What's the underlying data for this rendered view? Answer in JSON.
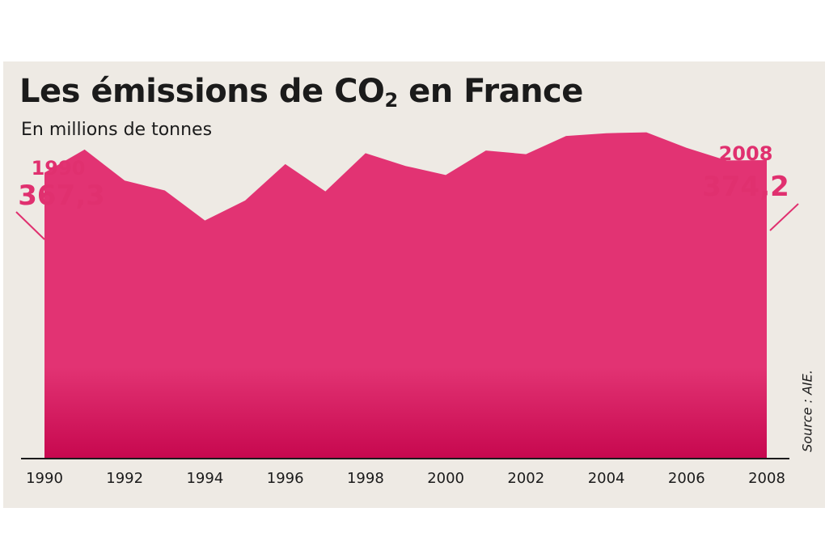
{
  "title_main": "Les émissions de CO",
  "title_sub": "2",
  "title_end": " en France",
  "subtitle": "En millions de tonnes",
  "source": "Source : AIE.",
  "colors": {
    "area_top": "#e23373",
    "area_bottom": "#c7084f",
    "accent": "#e0306f",
    "text": "#1b1b1b",
    "panel": "#eeeae4"
  },
  "callouts": [
    {
      "year": "1990",
      "value": "367,3"
    },
    {
      "year": "2008",
      "value": "374,2"
    }
  ],
  "chart_data": {
    "type": "area",
    "x": [
      1990,
      1991,
      1992,
      1993,
      1994,
      1995,
      1996,
      1997,
      1998,
      1999,
      2000,
      2001,
      2002,
      2003,
      2004,
      2005,
      2006,
      2007,
      2008
    ],
    "values": [
      367.3,
      380.0,
      363.0,
      357.5,
      341.0,
      352.0,
      372.0,
      357.0,
      378.0,
      371.0,
      366.0,
      379.5,
      377.5,
      387.5,
      389.0,
      389.5,
      381.0,
      374.0,
      374.2
    ],
    "tick_labels": [
      "1990",
      "1992",
      "1994",
      "1996",
      "1998",
      "2000",
      "2002",
      "2004",
      "2006",
      "2008"
    ],
    "title": "Les émissions de CO2 en France",
    "subtitle": "En millions de tonnes",
    "xlabel": "",
    "ylabel": "",
    "ylim": [
      210,
      400
    ],
    "grid": false,
    "legend": "none"
  }
}
